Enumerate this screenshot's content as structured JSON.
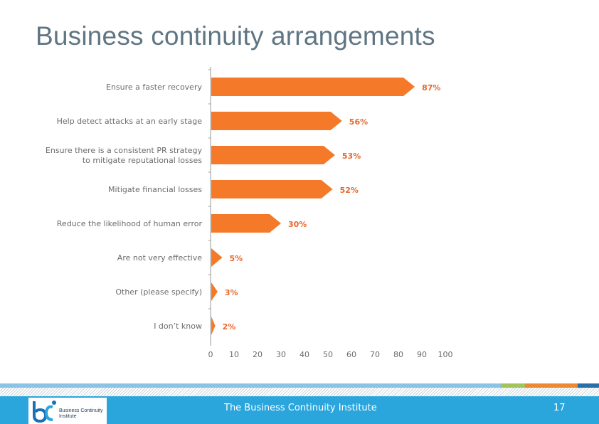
{
  "slide": {
    "title": "Business continuity arrangements",
    "footer_text": "The Business Continuity Institute",
    "page_number": "17",
    "logo_text": "Business Continuity Institute"
  },
  "colors": {
    "bar": "#f47a2a",
    "bar_label": "#e8672a",
    "axis_text": "#6b6b6b",
    "footer_blue": "#2aa6dd",
    "stripe_blue": "#8bc3e6",
    "stripe_green": "#a3c45a",
    "stripe_orange": "#ee8833",
    "stripe_navy": "#2a6fa8"
  },
  "chart_data": {
    "type": "bar",
    "orientation": "horizontal",
    "title": "",
    "xlabel": "",
    "ylabel": "",
    "xlim": [
      0,
      100
    ],
    "x_ticks": [
      0,
      10,
      20,
      30,
      40,
      50,
      60,
      70,
      80,
      90,
      100
    ],
    "categories": [
      [
        "Ensure a faster recovery"
      ],
      [
        "Help detect attacks at an early stage"
      ],
      [
        "Ensure there is a consistent PR strategy",
        "to mitigate reputational losses"
      ],
      [
        "Mitigate financial losses"
      ],
      [
        "Reduce the likelihood of human error"
      ],
      [
        "Are not very effective"
      ],
      [
        "Other (please specify)"
      ],
      [
        "I don’t know"
      ]
    ],
    "values": [
      87,
      56,
      53,
      52,
      30,
      5,
      3,
      2
    ],
    "value_labels": [
      "87%",
      "56%",
      "53%",
      "52%",
      "30%",
      "5%",
      "3%",
      "2%"
    ]
  }
}
